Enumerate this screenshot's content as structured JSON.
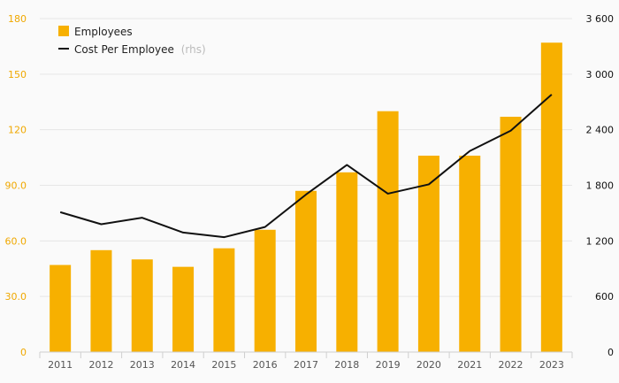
{
  "chart_data": {
    "type": "bar",
    "categories": [
      "2011",
      "2012",
      "2013",
      "2014",
      "2015",
      "2016",
      "2017",
      "2018",
      "2019",
      "2020",
      "2021",
      "2022",
      "2023"
    ],
    "series": [
      {
        "name": "Employees",
        "type": "bar",
        "axis": "left",
        "color": "#f7b000",
        "values": [
          47,
          55,
          50,
          46,
          56,
          66,
          87,
          97,
          130,
          106,
          106,
          127,
          167
        ]
      },
      {
        "name": "Cost Per Employee",
        "type": "line",
        "axis": "right",
        "color": "#111111",
        "values": [
          1510,
          1380,
          1450,
          1290,
          1240,
          1350,
          1700,
          2020,
          1710,
          1810,
          2170,
          2390,
          2780
        ]
      }
    ],
    "ylim_left": [
      0,
      180
    ],
    "ylim_right": [
      0,
      3600
    ],
    "yticks_left": [
      "0",
      "30.0",
      "60.0",
      "90.0",
      "120",
      "150",
      "180"
    ],
    "yticks_right": [
      "0",
      "600",
      "1 200",
      "1 800",
      "2 400",
      "3 000",
      "3 600"
    ],
    "legend": {
      "position": "top-left",
      "items": [
        {
          "label": "Employees",
          "suffix": ""
        },
        {
          "label": "Cost Per Employee",
          "suffix": "(rhs)"
        }
      ]
    },
    "colors": {
      "left_axis": "#f0a800",
      "right_axis": "#111111",
      "grid": "#e6e6e6",
      "suffix": "#bbbbbb"
    },
    "grid": true
  }
}
